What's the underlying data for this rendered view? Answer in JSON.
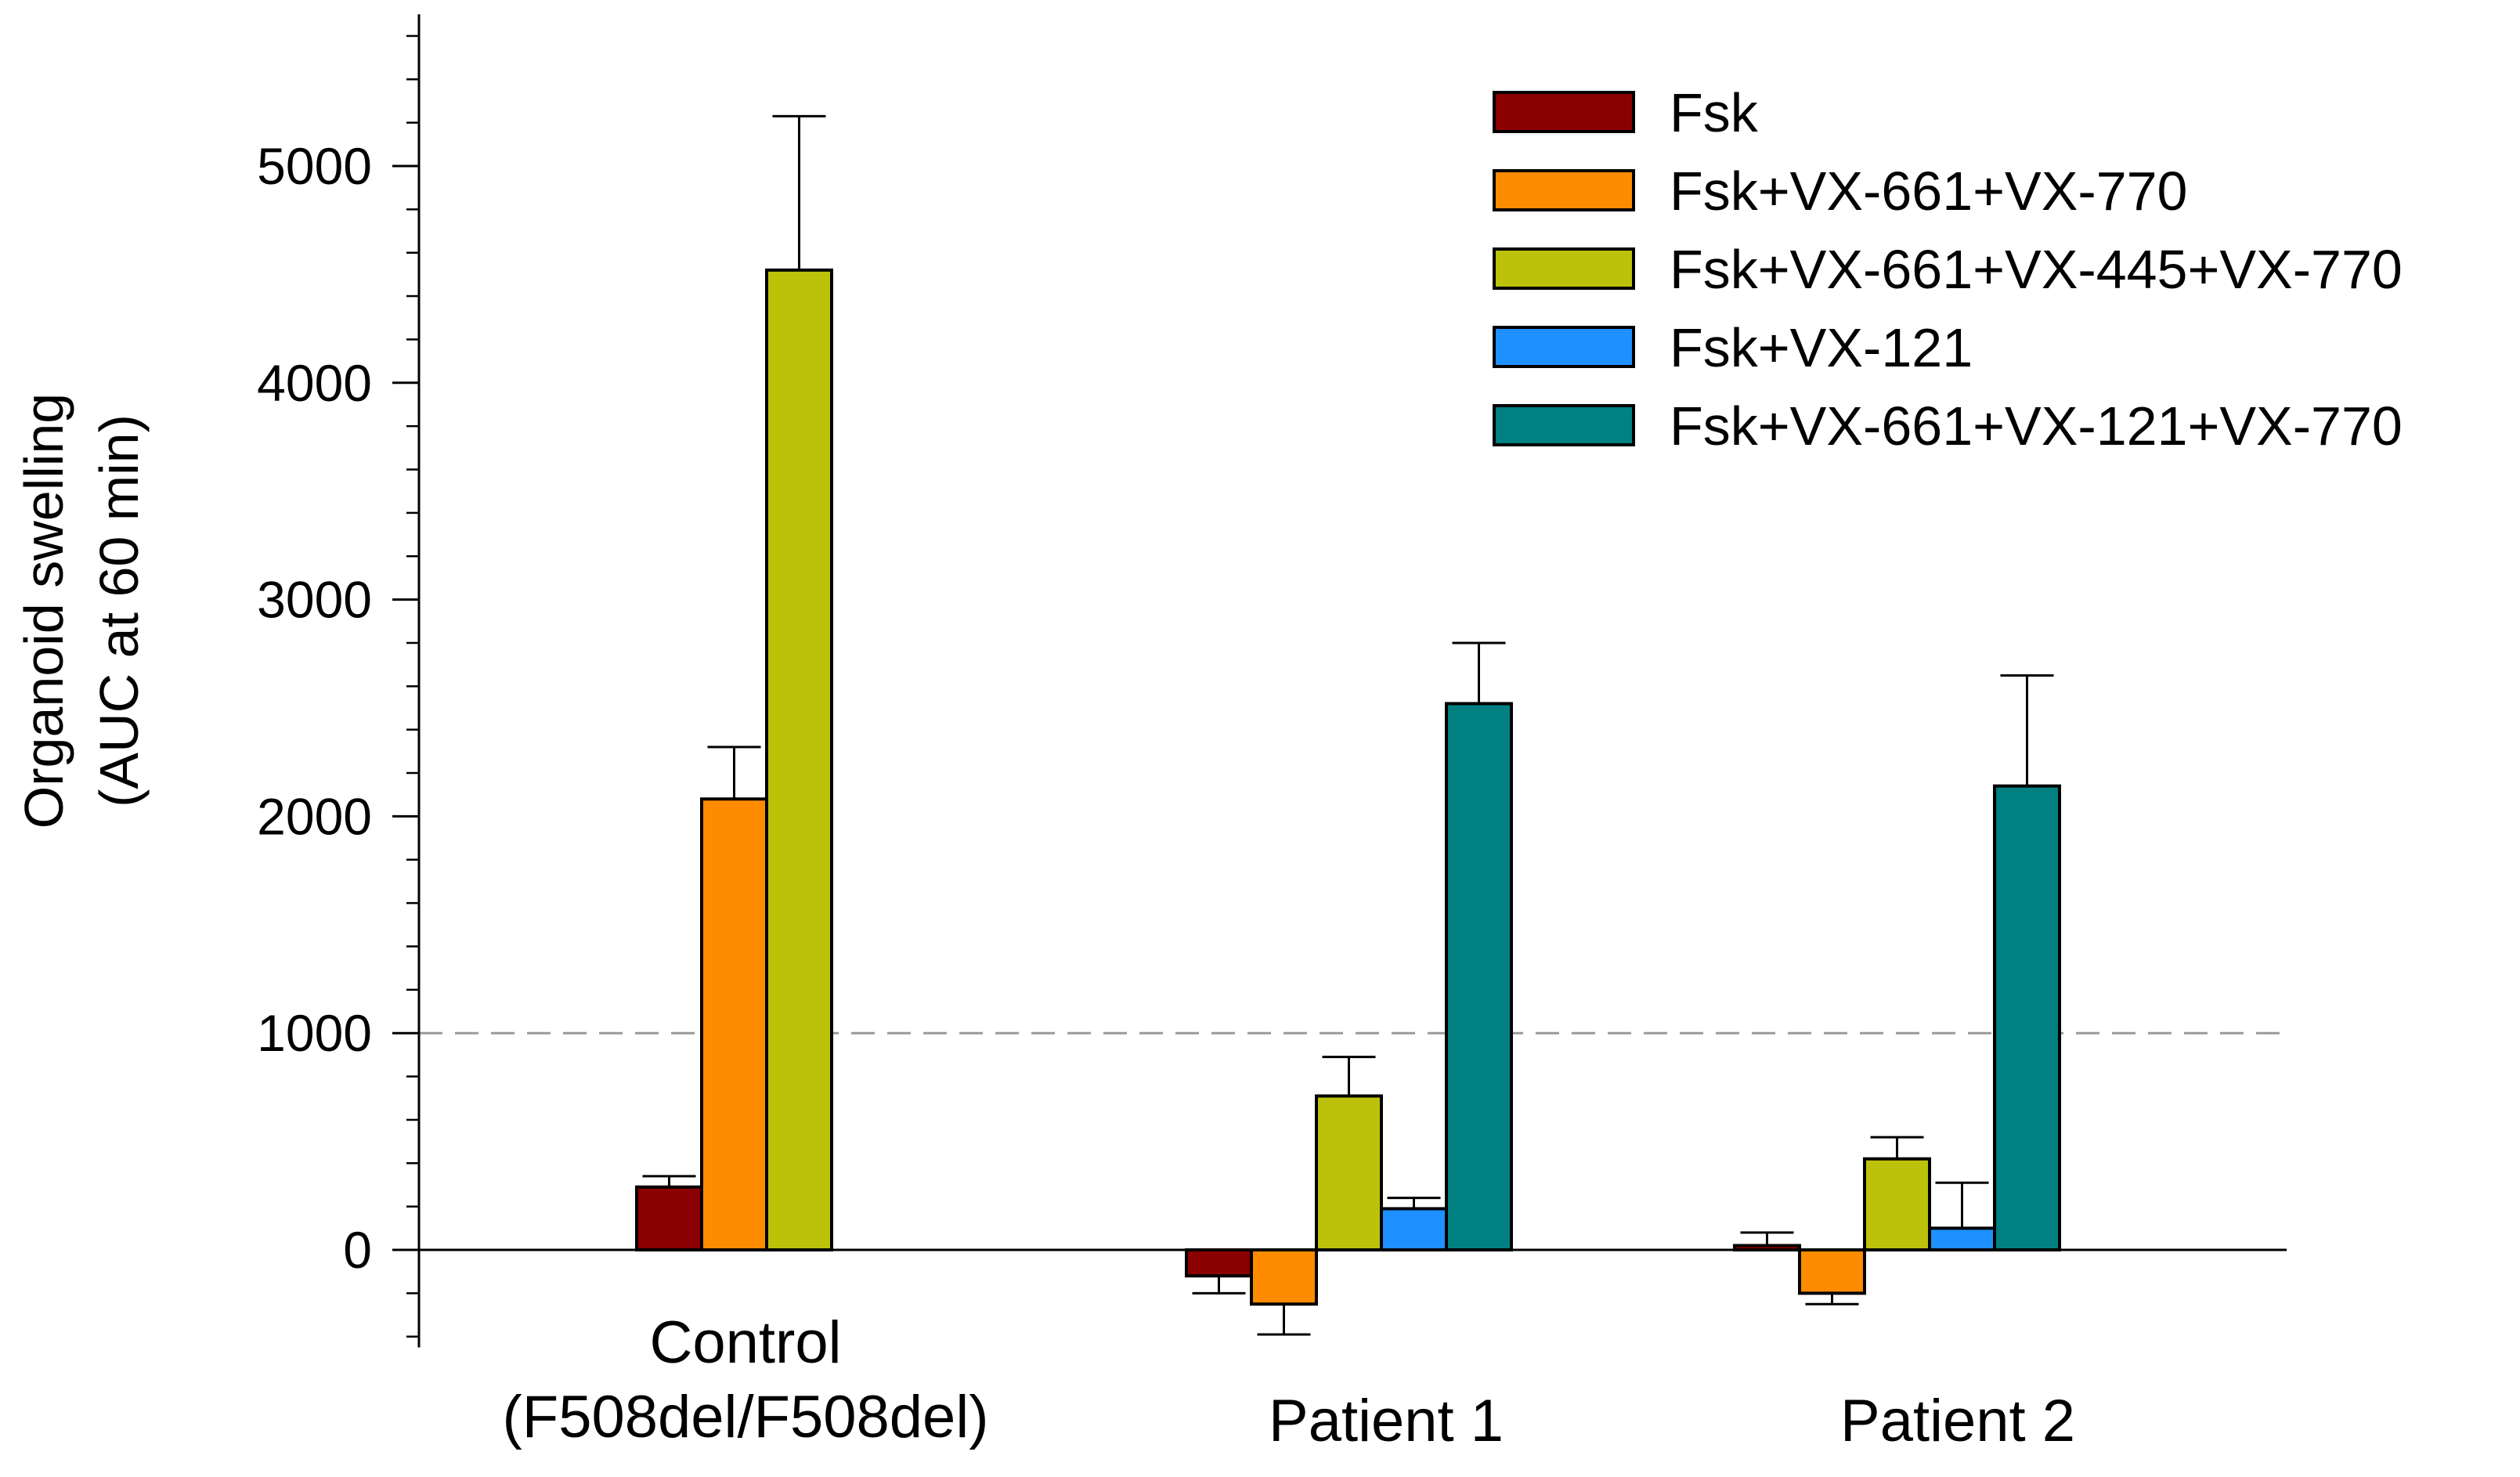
{
  "chart_data": {
    "type": "bar",
    "title": "",
    "xlabel": "",
    "ylabel_lines": [
      "Organoid swelling",
      "(AUC at 60 min)"
    ],
    "ylim": [
      -450,
      5700
    ],
    "yticks": [
      0,
      1000,
      2000,
      3000,
      4000,
      5000
    ],
    "minor_tick_step": 200,
    "reference_line": {
      "value": 1000,
      "style": "dashed"
    },
    "grid": false,
    "legend_position": "top-right",
    "categories": [
      {
        "lines": [
          "Control",
          "(F508del/F508del)"
        ]
      },
      {
        "lines": [
          "Patient 1"
        ]
      },
      {
        "lines": [
          "Patient 2"
        ]
      }
    ],
    "series": [
      {
        "name": "Fsk",
        "color": "#8b0000",
        "values": [
          290,
          -120,
          20
        ],
        "errors": [
          50,
          80,
          60
        ]
      },
      {
        "name": "Fsk+VX-661+VX-770",
        "color": "#ff8c00",
        "values": [
          2080,
          -250,
          -200
        ],
        "errors": [
          240,
          140,
          50
        ]
      },
      {
        "name": "Fsk+VX-661+VX-445+VX-770",
        "color": "#bcc20a",
        "values": [
          4520,
          710,
          420
        ],
        "errors": [
          710,
          180,
          100
        ]
      },
      {
        "name": "Fsk+VX-121",
        "color": "#1e90ff",
        "values": [
          null,
          190,
          100
        ],
        "errors": [
          null,
          50,
          210
        ]
      },
      {
        "name": "Fsk+VX-661+VX-121+VX-770",
        "color": "#008080",
        "values": [
          null,
          2520,
          2140
        ],
        "errors": [
          null,
          280,
          510
        ]
      }
    ]
  }
}
